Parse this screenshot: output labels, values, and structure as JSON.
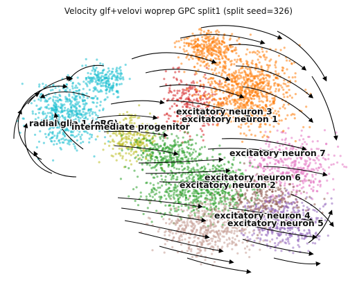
{
  "chart_data": {
    "type": "scatter",
    "title": "Velocity glf+velovi woprep GPC split1 (split seed=326)",
    "xlabel": "",
    "ylabel": "",
    "axes_visible": false,
    "grid": false,
    "legend": "on-data labels",
    "overlay": "velocity streamlines with arrowheads",
    "series": [
      {
        "name": "radial glia 1 (oRG)",
        "color": "#17becf",
        "label_at": [
          42,
          182
        ]
      },
      {
        "name": "intermediate progenitor",
        "color": "#bcbd22",
        "label_at": [
          103,
          187
        ]
      },
      {
        "name": "excitatory neuron 3",
        "color": "#d62728",
        "label_at": [
          254,
          165
        ]
      },
      {
        "name": "excitatory neuron 1",
        "color": "#ff7f0e",
        "label_at": [
          262,
          176
        ]
      },
      {
        "name": "excitatory neuron 7",
        "color": "#e377c2",
        "label_at": [
          331,
          225
        ]
      },
      {
        "name": "excitatory neuron 6",
        "color": "#8c564b",
        "label_at": [
          295,
          260
        ]
      },
      {
        "name": "excitatory neuron 2",
        "color": "#2ca02c",
        "label_at": [
          259,
          271
        ]
      },
      {
        "name": "excitatory neuron 4",
        "color": "#9467bd",
        "label_at": [
          309,
          315
        ]
      },
      {
        "name": "excitatory neuron 5",
        "color": "#c49c94",
        "label_at": [
          328,
          326
        ]
      }
    ]
  }
}
